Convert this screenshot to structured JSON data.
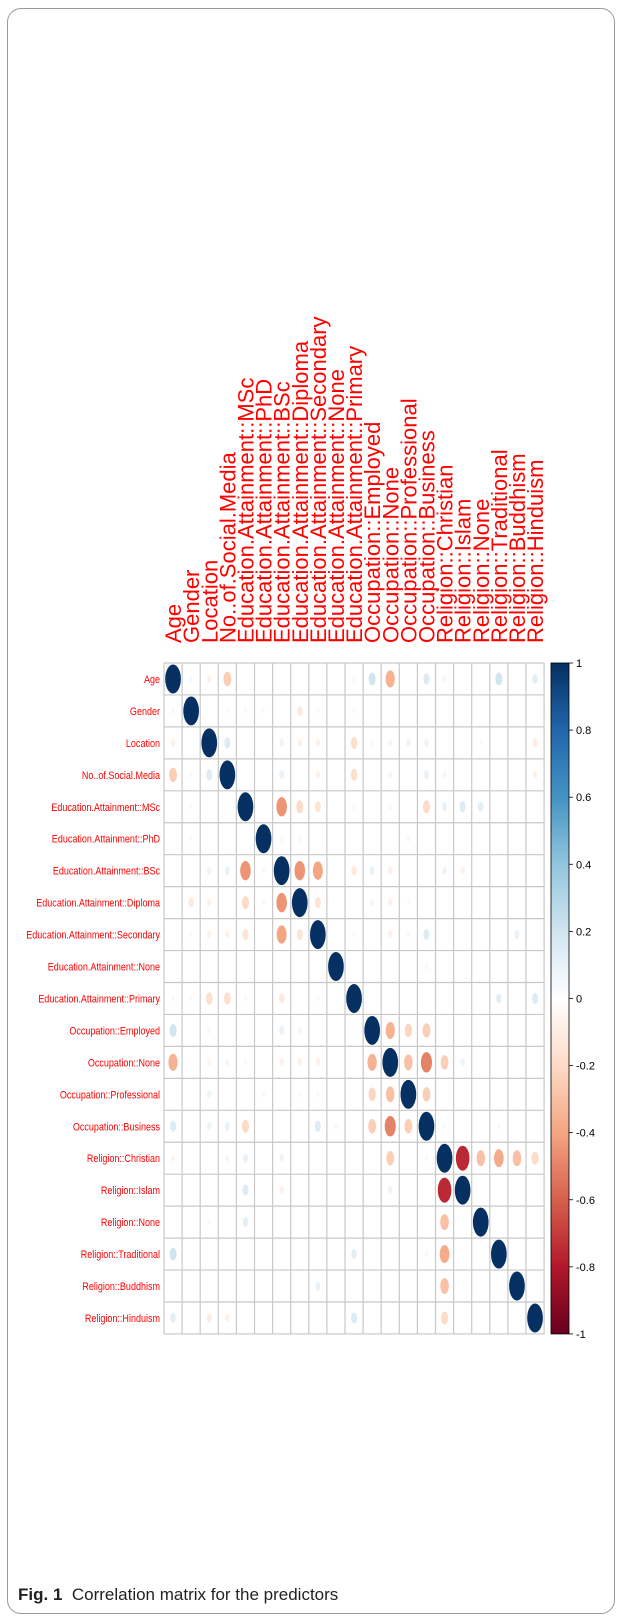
{
  "figure": {
    "label": "Fig. 1",
    "caption": "Correlation matrix for the predictors"
  },
  "chart_data": {
    "type": "heatmap",
    "subtype": "correlation-ellipse",
    "title": "",
    "variables": [
      "Age",
      "Gender",
      "Location",
      "No..of.Social.Media",
      "Education.Attainment::MSc",
      "Education.Attainment::PhD",
      "Education.Attainment::BSc",
      "Education.Attainment::Diploma",
      "Education.Attainment::Secondary",
      "Education.Attainment::None",
      "Education.Attainment::Primary",
      "Occupation::Employed",
      "Occupation::None",
      "Occupation::Professional",
      "Occupation::Business",
      "Religion::Christian",
      "Religion::Islam",
      "Religion::None",
      "Religion::Traditional",
      "Religion::Buddhism",
      "Religion::Hinduism"
    ],
    "colorbar": {
      "min": -1,
      "max": 1,
      "ticks": [
        "1",
        "0.8",
        "0.6",
        "0.4",
        "0.2",
        "0",
        "-0.2",
        "-0.4",
        "-0.6",
        "-0.8",
        "-1"
      ],
      "colors": [
        "#053061",
        "#2166ac",
        "#4393c3",
        "#92c5de",
        "#d1e5f0",
        "#ffffff",
        "#fddbc7",
        "#f4a582",
        "#d6604d",
        "#b2182b",
        "#67001f"
      ]
    },
    "label_color": "#ff0000",
    "grid_color": "#c8c8c8",
    "correlations": [
      {
        "i": 0,
        "j": 1,
        "r": 0.05
      },
      {
        "i": 0,
        "j": 2,
        "r": -0.08
      },
      {
        "i": 0,
        "j": 3,
        "r": -0.25
      },
      {
        "i": 0,
        "j": 10,
        "r": 0.05
      },
      {
        "i": 0,
        "j": 11,
        "r": 0.2
      },
      {
        "i": 0,
        "j": 12,
        "r": -0.35
      },
      {
        "i": 0,
        "j": 14,
        "r": 0.15
      },
      {
        "i": 0,
        "j": 15,
        "r": -0.06
      },
      {
        "i": 0,
        "j": 18,
        "r": 0.2
      },
      {
        "i": 0,
        "j": 20,
        "r": 0.12
      },
      {
        "i": 1,
        "j": 3,
        "r": 0.04
      },
      {
        "i": 1,
        "j": 4,
        "r": 0.04
      },
      {
        "i": 1,
        "j": 5,
        "r": 0.04
      },
      {
        "i": 1,
        "j": 7,
        "r": -0.12
      },
      {
        "i": 1,
        "j": 8,
        "r": 0.04
      },
      {
        "i": 1,
        "j": 10,
        "r": 0.03
      },
      {
        "i": 2,
        "j": 3,
        "r": 0.15
      },
      {
        "i": 2,
        "j": 6,
        "r": 0.08
      },
      {
        "i": 2,
        "j": 7,
        "r": -0.08
      },
      {
        "i": 2,
        "j": 8,
        "r": -0.08
      },
      {
        "i": 2,
        "j": 10,
        "r": -0.18
      },
      {
        "i": 2,
        "j": 11,
        "r": 0.05
      },
      {
        "i": 2,
        "j": 12,
        "r": -0.06
      },
      {
        "i": 2,
        "j": 13,
        "r": 0.08
      },
      {
        "i": 2,
        "j": 14,
        "r": 0.08
      },
      {
        "i": 2,
        "j": 17,
        "r": -0.04
      },
      {
        "i": 2,
        "j": 20,
        "r": -0.1
      },
      {
        "i": 3,
        "j": 6,
        "r": 0.1
      },
      {
        "i": 3,
        "j": 8,
        "r": -0.08
      },
      {
        "i": 3,
        "j": 10,
        "r": -0.18
      },
      {
        "i": 3,
        "j": 12,
        "r": 0.06
      },
      {
        "i": 3,
        "j": 14,
        "r": 0.1
      },
      {
        "i": 3,
        "j": 15,
        "r": -0.06
      },
      {
        "i": 3,
        "j": 20,
        "r": -0.08
      },
      {
        "i": 4,
        "j": 6,
        "r": -0.45
      },
      {
        "i": 4,
        "j": 7,
        "r": -0.2
      },
      {
        "i": 4,
        "j": 8,
        "r": -0.15
      },
      {
        "i": 4,
        "j": 10,
        "r": -0.05
      },
      {
        "i": 4,
        "j": 12,
        "r": 0.05
      },
      {
        "i": 4,
        "j": 14,
        "r": -0.2
      },
      {
        "i": 4,
        "j": 15,
        "r": 0.1
      },
      {
        "i": 4,
        "j": 16,
        "r": 0.15
      },
      {
        "i": 4,
        "j": 17,
        "r": 0.12
      },
      {
        "i": 5,
        "j": 6,
        "r": -0.05
      },
      {
        "i": 5,
        "j": 7,
        "r": -0.05
      },
      {
        "i": 5,
        "j": 13,
        "r": 0.05
      },
      {
        "i": 6,
        "j": 7,
        "r": -0.45
      },
      {
        "i": 6,
        "j": 8,
        "r": -0.4
      },
      {
        "i": 6,
        "j": 10,
        "r": -0.12
      },
      {
        "i": 6,
        "j": 11,
        "r": 0.1
      },
      {
        "i": 6,
        "j": 12,
        "r": -0.08
      },
      {
        "i": 6,
        "j": 15,
        "r": 0.08
      },
      {
        "i": 6,
        "j": 16,
        "r": -0.08
      },
      {
        "i": 7,
        "j": 8,
        "r": -0.15
      },
      {
        "i": 7,
        "j": 11,
        "r": -0.06
      },
      {
        "i": 7,
        "j": 12,
        "r": -0.08
      },
      {
        "i": 7,
        "j": 13,
        "r": -0.04
      },
      {
        "i": 8,
        "j": 10,
        "r": -0.04
      },
      {
        "i": 8,
        "j": 12,
        "r": -0.08
      },
      {
        "i": 8,
        "j": 13,
        "r": -0.05
      },
      {
        "i": 8,
        "j": 14,
        "r": 0.15
      },
      {
        "i": 8,
        "j": 19,
        "r": 0.1
      },
      {
        "i": 9,
        "j": 14,
        "r": 0.05
      },
      {
        "i": 10,
        "j": 18,
        "r": 0.12
      },
      {
        "i": 10,
        "j": 20,
        "r": 0.15
      },
      {
        "i": 11,
        "j": 12,
        "r": -0.35
      },
      {
        "i": 11,
        "j": 13,
        "r": -0.22
      },
      {
        "i": 11,
        "j": 14,
        "r": -0.25
      },
      {
        "i": 12,
        "j": 13,
        "r": -0.3
      },
      {
        "i": 12,
        "j": 14,
        "r": -0.5
      },
      {
        "i": 12,
        "j": 15,
        "r": -0.25
      },
      {
        "i": 12,
        "j": 16,
        "r": 0.08
      },
      {
        "i": 13,
        "j": 14,
        "r": -0.25
      },
      {
        "i": 14,
        "j": 15,
        "r": 0.05
      },
      {
        "i": 14,
        "j": 18,
        "r": 0.05
      },
      {
        "i": 15,
        "j": 16,
        "r": -0.75
      },
      {
        "i": 15,
        "j": 17,
        "r": -0.3
      },
      {
        "i": 15,
        "j": 18,
        "r": -0.38
      },
      {
        "i": 15,
        "j": 19,
        "r": -0.3
      },
      {
        "i": 15,
        "j": 20,
        "r": -0.2
      }
    ]
  }
}
